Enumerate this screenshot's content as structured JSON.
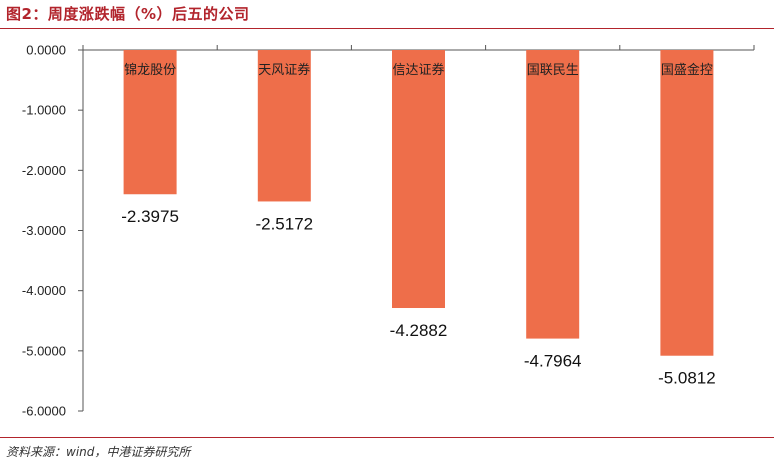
{
  "figure": {
    "title": "图2：周度涨跌幅（%）后五的公司",
    "source": "资料来源：wind，中港证券研究所"
  },
  "colors": {
    "bar": "#ee6e4a",
    "title": "#b2242c",
    "axis": "#555555"
  },
  "chart_data": {
    "type": "bar",
    "categories": [
      "锦龙股份",
      "天风证券",
      "信达证券",
      "国联民生",
      "国盛金控"
    ],
    "values": [
      -2.3975,
      -2.5172,
      -4.2882,
      -4.7964,
      -5.0812
    ],
    "data_labels": [
      "-2.3975",
      "-2.5172",
      "-4.2882",
      "-4.7964",
      "-5.0812"
    ],
    "yticks": [
      0,
      -1,
      -2,
      -3,
      -4,
      -5,
      -6
    ],
    "ytick_labels": [
      "0.0000",
      "-1.0000",
      "-2.0000",
      "-3.0000",
      "-4.0000",
      "-5.0000",
      "-6.0000"
    ],
    "ylim": [
      -6,
      0
    ],
    "category_label_position": "top, inside bars",
    "grid": false,
    "legend": "none"
  }
}
